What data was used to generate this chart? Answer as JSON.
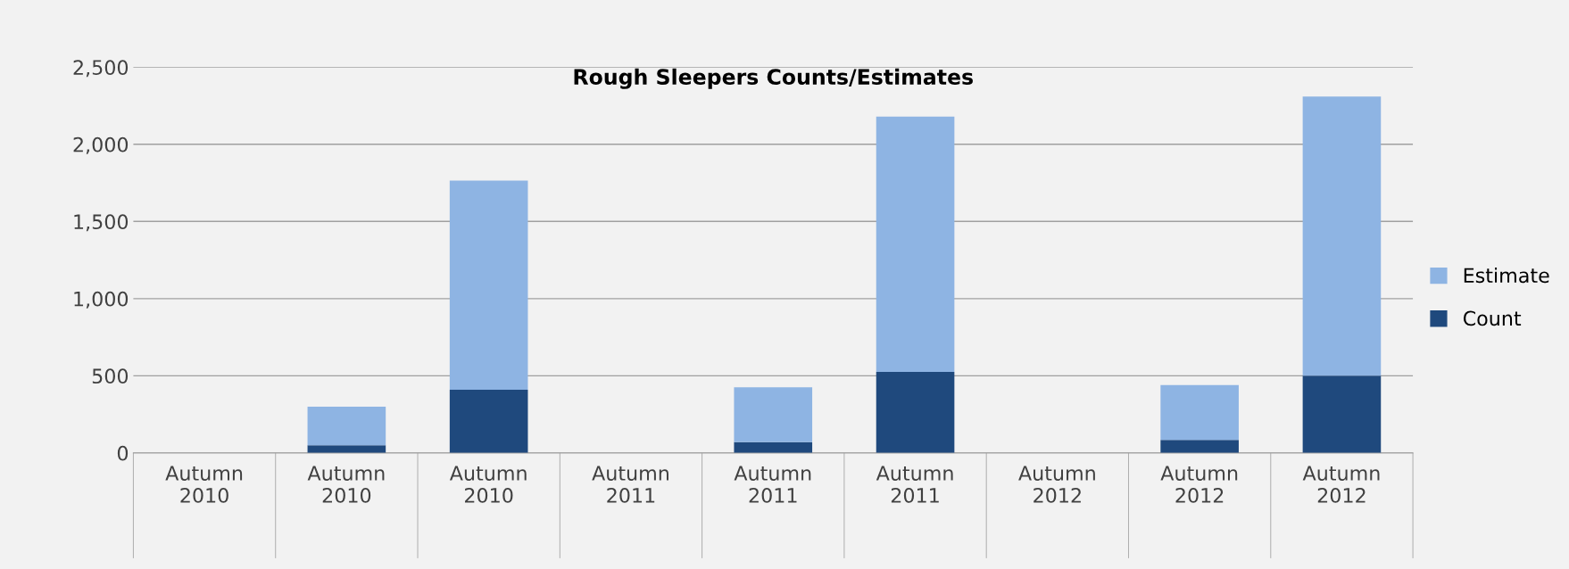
{
  "chart_data": {
    "type": "bar",
    "title": "Rough Sleepers Counts/Estimates",
    "categories": [
      "Autumn\n2010",
      "Autumn\n2010",
      "Autumn\n2010",
      "Autumn\n2011",
      "Autumn\n2011",
      "Autumn\n2011",
      "Autumn\n2012",
      "Autumn\n2012",
      "Autumn\n2012"
    ],
    "stacked": true,
    "series": [
      {
        "name": "Count",
        "color": "#1f497d",
        "values": [
          null,
          50,
          410,
          null,
          70,
          525,
          null,
          85,
          500
        ]
      },
      {
        "name": "Estimate",
        "color": "#8eb4e3",
        "values": [
          null,
          250,
          1355,
          null,
          355,
          1655,
          null,
          355,
          1810
        ]
      }
    ],
    "ylim": [
      0,
      2500
    ],
    "yticks": [
      {
        "value": 0,
        "label": "0"
      },
      {
        "value": 500,
        "label": "500"
      },
      {
        "value": 1000,
        "label": "1,000"
      },
      {
        "value": 1500,
        "label": "1,500"
      },
      {
        "value": 2000,
        "label": "2,000"
      },
      {
        "value": 2500,
        "label": "2,500"
      }
    ],
    "grid": "y",
    "legend": "right"
  }
}
